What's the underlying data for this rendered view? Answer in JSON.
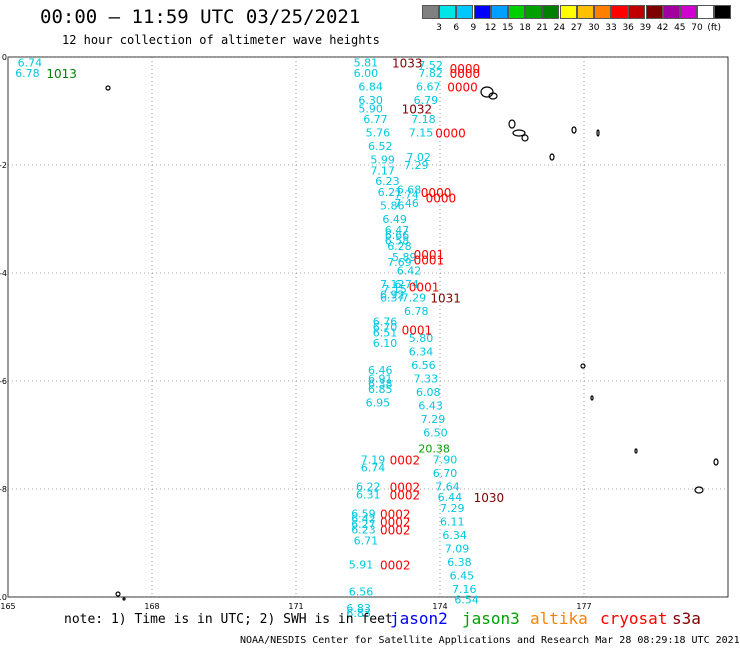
{
  "header": {
    "title": "00:00 – 11:59 UTC 03/25/2021",
    "subtitle": "12 hour collection of altimeter wave heights"
  },
  "legend": {
    "colors": [
      "#808080",
      "#00e5e5",
      "#00c8ff",
      "#0000ff",
      "#00a0ff",
      "#00d000",
      "#00a000",
      "#008000",
      "#ffff00",
      "#ffc000",
      "#ff8000",
      "#ff0000",
      "#c00000",
      "#800000",
      "#a000a0",
      "#d000d0",
      "#ffffff",
      "#000000"
    ],
    "labels": [
      "3",
      "6",
      "9",
      "12",
      "15",
      "18",
      "21",
      "24",
      "27",
      "30",
      "33",
      "36",
      "39",
      "42",
      "45",
      "70",
      "(ft)"
    ]
  },
  "footer": {
    "note": "note: 1) Time is in UTC; 2) SWH is in feet",
    "credit": "NOAA/NESDIS Center for Satellite Applications and Research   Mar 28 08:29:18 UTC 2021",
    "satellites": [
      {
        "name": "jason2",
        "color": "#0000ff"
      },
      {
        "name": "jason3",
        "color": "#00a000"
      },
      {
        "name": "altika",
        "color": "#ff8000"
      },
      {
        "name": "cryosat",
        "color": "#ff0000"
      },
      {
        "name": "s3a",
        "color": "#800000"
      }
    ]
  },
  "chart_data": {
    "type": "scatter",
    "title": "00:00 – 11:59 UTC 03/25/2021",
    "xlim": [
      165,
      180
    ],
    "ylim": [
      -10,
      0
    ],
    "x_ticks": [
      "165",
      "168",
      "171",
      "174",
      "177"
    ],
    "y_ticks": [
      "0",
      "-2",
      "-4",
      "-6",
      "-8",
      "-10"
    ],
    "grid": true,
    "swh_points": [
      {
        "lon": 165.2,
        "lat": -0.1,
        "text": "6.74",
        "color": "#00c8e0"
      },
      {
        "lon": 165.15,
        "lat": -0.3,
        "text": "6.78",
        "color": "#00c8e0"
      },
      {
        "lon": 172.2,
        "lat": -0.1,
        "text": "5.81",
        "color": "#00c8e0"
      },
      {
        "lon": 172.2,
        "lat": -0.3,
        "text": "6.00",
        "color": "#00c8e0"
      },
      {
        "lon": 172.3,
        "lat": -0.55,
        "text": "6.84",
        "color": "#00c8e0"
      },
      {
        "lon": 172.3,
        "lat": -0.8,
        "text": "6.30",
        "color": "#00c8e0"
      },
      {
        "lon": 172.3,
        "lat": -0.95,
        "text": "5.90",
        "color": "#00c8e0"
      },
      {
        "lon": 172.4,
        "lat": -1.15,
        "text": "6.77",
        "color": "#00c8e0"
      },
      {
        "lon": 172.45,
        "lat": -1.4,
        "text": "5.76",
        "color": "#00c8e0"
      },
      {
        "lon": 172.5,
        "lat": -1.65,
        "text": "6.52",
        "color": "#00c8e0"
      },
      {
        "lon": 172.55,
        "lat": -1.9,
        "text": "5.99",
        "color": "#00c8e0"
      },
      {
        "lon": 172.55,
        "lat": -2.1,
        "text": "7.17",
        "color": "#00c8e0"
      },
      {
        "lon": 172.65,
        "lat": -2.3,
        "text": "6.23",
        "color": "#00c8e0"
      },
      {
        "lon": 172.7,
        "lat": -2.5,
        "text": "6.21",
        "color": "#00c8e0"
      },
      {
        "lon": 172.75,
        "lat": -2.75,
        "text": "5.86",
        "color": "#00c8e0"
      },
      {
        "lon": 172.8,
        "lat": -3.0,
        "text": "6.49",
        "color": "#00c8e0"
      },
      {
        "lon": 172.85,
        "lat": -3.2,
        "text": "6.47",
        "color": "#00c8e0"
      },
      {
        "lon": 172.85,
        "lat": -3.3,
        "text": "6.66",
        "color": "#00c8e0"
      },
      {
        "lon": 172.85,
        "lat": -3.4,
        "text": "6.58",
        "color": "#00c8e0"
      },
      {
        "lon": 172.9,
        "lat": -3.5,
        "text": "6.28",
        "color": "#00c8e0"
      },
      {
        "lon": 172.9,
        "lat": -3.8,
        "text": "7.69",
        "color": "#00c8e0"
      },
      {
        "lon": 173.0,
        "lat": -3.7,
        "text": "5.89",
        "color": "#00c8e0"
      },
      {
        "lon": 173.1,
        "lat": -3.95,
        "text": "6.42",
        "color": "#00c8e0"
      },
      {
        "lon": 172.75,
        "lat": -4.2,
        "text": "7.12",
        "color": "#00c8e0"
      },
      {
        "lon": 172.8,
        "lat": -4.3,
        "text": "7.15",
        "color": "#00c8e0"
      },
      {
        "lon": 173.05,
        "lat": -4.2,
        "text": "6.74",
        "color": "#00c8e0"
      },
      {
        "lon": 172.75,
        "lat": -4.4,
        "text": "6.92",
        "color": "#00c8e0"
      },
      {
        "lon": 172.75,
        "lat": -4.45,
        "text": "6.37",
        "color": "#00c8e0"
      },
      {
        "lon": 173.2,
        "lat": -4.45,
        "text": "7.29",
        "color": "#00c8e0"
      },
      {
        "lon": 173.25,
        "lat": -4.7,
        "text": "6.78",
        "color": "#00c8e0"
      },
      {
        "lon": 172.6,
        "lat": -4.9,
        "text": "6.76",
        "color": "#00c8e0"
      },
      {
        "lon": 172.6,
        "lat": -5.0,
        "text": "6.70",
        "color": "#00c8e0"
      },
      {
        "lon": 172.6,
        "lat": -5.1,
        "text": "6.51",
        "color": "#00c8e0"
      },
      {
        "lon": 172.6,
        "lat": -5.3,
        "text": "6.10",
        "color": "#00c8e0"
      },
      {
        "lon": 173.35,
        "lat": -5.2,
        "text": "5.80",
        "color": "#00c8e0"
      },
      {
        "lon": 173.35,
        "lat": -5.45,
        "text": "6.34",
        "color": "#00c8e0"
      },
      {
        "lon": 173.4,
        "lat": -5.7,
        "text": "6.56",
        "color": "#00c8e0"
      },
      {
        "lon": 172.5,
        "lat": -5.8,
        "text": "6.46",
        "color": "#00c8e0"
      },
      {
        "lon": 172.5,
        "lat": -5.95,
        "text": "6.91",
        "color": "#00c8e0"
      },
      {
        "lon": 172.5,
        "lat": -6.05,
        "text": "6.38",
        "color": "#00c8e0"
      },
      {
        "lon": 172.5,
        "lat": -6.15,
        "text": "6.85",
        "color": "#00c8e0"
      },
      {
        "lon": 172.45,
        "lat": -6.4,
        "text": "6.95",
        "color": "#00c8e0"
      },
      {
        "lon": 173.45,
        "lat": -5.95,
        "text": "7.33",
        "color": "#00c8e0"
      },
      {
        "lon": 173.5,
        "lat": -6.2,
        "text": "6.08",
        "color": "#00c8e0"
      },
      {
        "lon": 173.55,
        "lat": -6.45,
        "text": "6.43",
        "color": "#00c8e0"
      },
      {
        "lon": 173.6,
        "lat": -6.7,
        "text": "7.29",
        "color": "#00c8e0"
      },
      {
        "lon": 173.65,
        "lat": -6.95,
        "text": "6.50",
        "color": "#00c8e0"
      },
      {
        "lon": 173.55,
        "lat": -7.25,
        "text": "20.38",
        "color": "#00a000"
      },
      {
        "lon": 172.35,
        "lat": -7.45,
        "text": "7.19",
        "color": "#00c8e0"
      },
      {
        "lon": 172.35,
        "lat": -7.6,
        "text": "6.74",
        "color": "#00c8e0"
      },
      {
        "lon": 173.85,
        "lat": -7.45,
        "text": "7.90",
        "color": "#00c8e0"
      },
      {
        "lon": 173.85,
        "lat": -7.7,
        "text": "6.70",
        "color": "#00c8e0"
      },
      {
        "lon": 172.25,
        "lat": -7.95,
        "text": "6.22",
        "color": "#00c8e0"
      },
      {
        "lon": 172.25,
        "lat": -8.1,
        "text": "6.31",
        "color": "#00c8e0"
      },
      {
        "lon": 173.9,
        "lat": -7.95,
        "text": "7.64",
        "color": "#00c8e0"
      },
      {
        "lon": 173.95,
        "lat": -8.15,
        "text": "6.44",
        "color": "#00c8e0"
      },
      {
        "lon": 174.0,
        "lat": -8.35,
        "text": "7.29",
        "color": "#00c8e0"
      },
      {
        "lon": 174.0,
        "lat": -8.6,
        "text": "6.11",
        "color": "#00c8e0"
      },
      {
        "lon": 172.15,
        "lat": -8.45,
        "text": "6.59",
        "color": "#00c8e0"
      },
      {
        "lon": 172.15,
        "lat": -8.55,
        "text": "6.42",
        "color": "#00c8e0"
      },
      {
        "lon": 172.15,
        "lat": -8.65,
        "text": "6.27",
        "color": "#00c8e0"
      },
      {
        "lon": 172.15,
        "lat": -8.75,
        "text": "6.23",
        "color": "#00c8e0"
      },
      {
        "lon": 172.2,
        "lat": -8.95,
        "text": "6.71",
        "color": "#00c8e0"
      },
      {
        "lon": 174.05,
        "lat": -8.85,
        "text": "6.34",
        "color": "#00c8e0"
      },
      {
        "lon": 174.1,
        "lat": -9.1,
        "text": "7.09",
        "color": "#00c8e0"
      },
      {
        "lon": 174.15,
        "lat": -9.35,
        "text": "6.38",
        "color": "#00c8e0"
      },
      {
        "lon": 172.1,
        "lat": -9.4,
        "text": "5.91",
        "color": "#00c8e0"
      },
      {
        "lon": 174.2,
        "lat": -9.6,
        "text": "6.45",
        "color": "#00c8e0"
      },
      {
        "lon": 174.25,
        "lat": -9.85,
        "text": "7.16",
        "color": "#00c8e0"
      },
      {
        "lon": 172.1,
        "lat": -9.9,
        "text": "6.56",
        "color": "#00c8e0"
      },
      {
        "lon": 174.3,
        "lat": -10.05,
        "text": "6.54",
        "color": "#00c8e0"
      },
      {
        "lon": 172.05,
        "lat": -10.2,
        "text": "6.83",
        "color": "#00c8e0"
      },
      {
        "lon": 172.05,
        "lat": -10.3,
        "text": "6.83",
        "color": "#00c8e0"
      },
      {
        "lon": 173.55,
        "lat": -0.15,
        "text": "7.52",
        "color": "#00c8e0"
      },
      {
        "lon": 173.55,
        "lat": -0.3,
        "text": "7.82",
        "color": "#00c8e0"
      },
      {
        "lon": 173.5,
        "lat": -0.55,
        "text": "6.67",
        "color": "#00c8e0"
      },
      {
        "lon": 173.45,
        "lat": -0.8,
        "text": "6.79",
        "color": "#00c8e0"
      },
      {
        "lon": 173.4,
        "lat": -1.15,
        "text": "7.18",
        "color": "#00c8e0"
      },
      {
        "lon": 173.35,
        "lat": -1.4,
        "text": "7.15",
        "color": "#00c8e0"
      },
      {
        "lon": 173.3,
        "lat": -1.85,
        "text": "7.02",
        "color": "#00c8e0"
      },
      {
        "lon": 173.25,
        "lat": -2.0,
        "text": "7.29",
        "color": "#00c8e0"
      },
      {
        "lon": 173.1,
        "lat": -2.45,
        "text": "6.68",
        "color": "#00c8e0"
      },
      {
        "lon": 173.05,
        "lat": -2.55,
        "text": "7.74",
        "color": "#00c8e0"
      },
      {
        "lon": 173.05,
        "lat": -2.7,
        "text": "7.46",
        "color": "#00c8e0"
      }
    ],
    "time_points": [
      {
        "lon": 165.8,
        "lat": -0.3,
        "text": "1013",
        "color": "#008000"
      },
      {
        "lon": 173.0,
        "lat": -0.1,
        "text": "1033",
        "color": "#800000"
      },
      {
        "lon": 174.2,
        "lat": -0.2,
        "text": "0000",
        "color": "#ff0000"
      },
      {
        "lon": 174.2,
        "lat": -0.3,
        "text": "0000",
        "color": "#ff0000"
      },
      {
        "lon": 174.15,
        "lat": -0.55,
        "text": "0000",
        "color": "#ff0000"
      },
      {
        "lon": 173.2,
        "lat": -0.95,
        "text": "1032",
        "color": "#800000"
      },
      {
        "lon": 173.9,
        "lat": -1.4,
        "text": "0000",
        "color": "#ff0000"
      },
      {
        "lon": 173.6,
        "lat": -2.5,
        "text": "0000",
        "color": "#ff0000"
      },
      {
        "lon": 173.7,
        "lat": -2.6,
        "text": "0000",
        "color": "#ff0000"
      },
      {
        "lon": 173.45,
        "lat": -3.65,
        "text": "0001",
        "color": "#ff0000"
      },
      {
        "lon": 173.45,
        "lat": -3.75,
        "text": "0001",
        "color": "#ff0000"
      },
      {
        "lon": 173.35,
        "lat": -4.25,
        "text": "0001",
        "color": "#ff0000"
      },
      {
        "lon": 173.8,
        "lat": -4.45,
        "text": "1031",
        "color": "#800000"
      },
      {
        "lon": 173.2,
        "lat": -5.05,
        "text": "0001",
        "color": "#ff0000"
      },
      {
        "lon": 172.95,
        "lat": -7.45,
        "text": "0002",
        "color": "#ff0000"
      },
      {
        "lon": 172.95,
        "lat": -7.95,
        "text": "0002",
        "color": "#ff0000"
      },
      {
        "lon": 172.95,
        "lat": -8.1,
        "text": "0002",
        "color": "#ff0000"
      },
      {
        "lon": 174.7,
        "lat": -8.15,
        "text": "1030",
        "color": "#800000"
      },
      {
        "lon": 172.75,
        "lat": -8.45,
        "text": "0002",
        "color": "#ff0000"
      },
      {
        "lon": 172.75,
        "lat": -8.6,
        "text": "0002",
        "color": "#ff0000"
      },
      {
        "lon": 172.75,
        "lat": -8.75,
        "text": "0002",
        "color": "#ff0000"
      },
      {
        "lon": 172.75,
        "lat": -9.4,
        "text": "0002",
        "color": "#ff0000"
      }
    ]
  }
}
